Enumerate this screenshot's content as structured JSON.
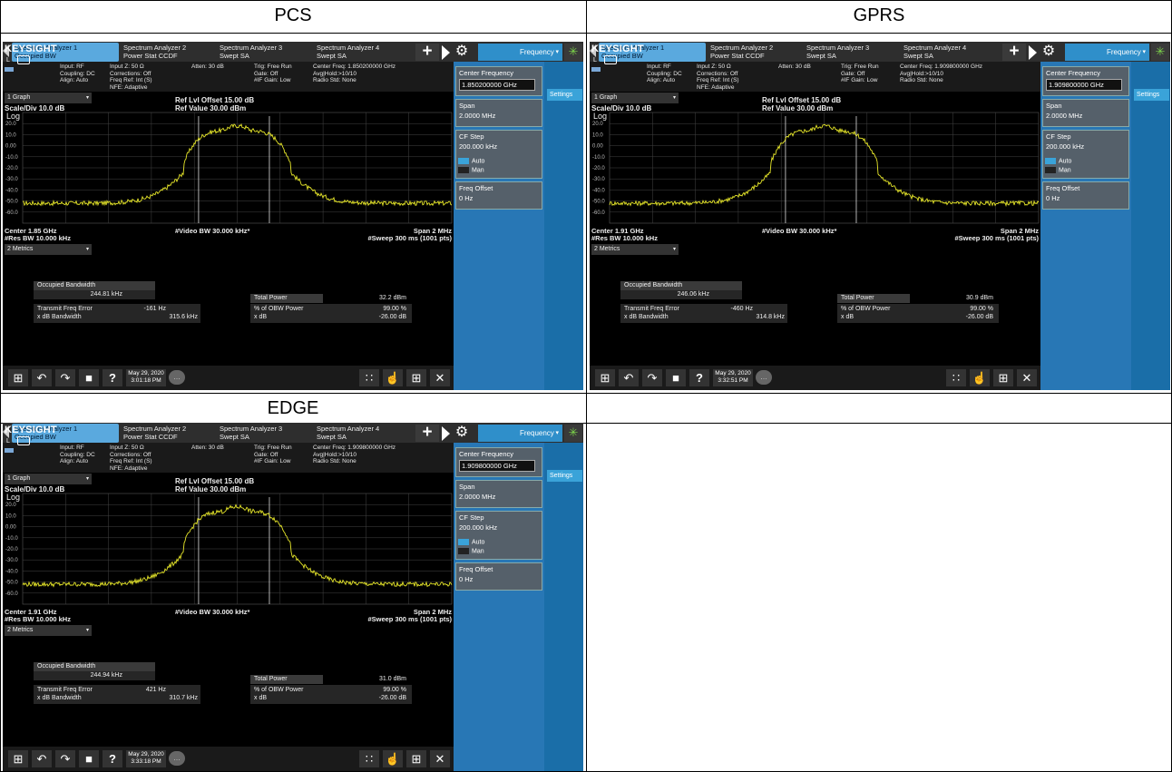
{
  "cells": [
    {
      "title": "PCS",
      "tabs": [
        {
          "line1": "Spectrum Analyzer 1",
          "line2": "Occupied BW",
          "active": true
        },
        {
          "line1": "Spectrum Analyzer 2",
          "line2": "Power Stat CCDF"
        },
        {
          "line1": "Spectrum Analyzer 3",
          "line2": "Swept SA"
        },
        {
          "line1": "Spectrum Analyzer 4",
          "line2": "Swept SA"
        }
      ],
      "menu_button": "Frequency",
      "brand": "KEYSIGHT",
      "info": {
        "c1": "Input: RF\nCoupling: DC\nAlign: Auto",
        "c2": "Input Z: 50 Ω\nCorrections: Off\nFreq Ref: Int (S)\nNFE: Adaptive",
        "c3": "Atten: 30 dB",
        "c4": "Trig: Free Run\nGate: Off\n#IF Gain: Low",
        "c5": "Center Freq: 1.850200000 GHz\nAvg|Hold:>10/10\nRadio Std: None"
      },
      "graph_select": "1 Graph",
      "ref_offset": "Ref Lvl Offset 15.00 dB",
      "ref_value": "Ref Value 30.00 dBm",
      "scale": "Scale/Div 10.0 dB",
      "log": "Log",
      "center": "Center 1.85 GHz",
      "res_bw": "#Res BW 10.000 kHz",
      "video_bw": "#Video BW 30.000 kHz*",
      "span": "Span 2 MHz",
      "sweep": "#Sweep 300 ms (1001 pts)",
      "metrics_select": "2 Metrics",
      "metrics": {
        "obw_label": "Occupied Bandwidth",
        "obw_value": "244.81 kHz",
        "tfe_label": "Transmit Freq Error",
        "tfe_value": "-161 Hz",
        "xdb_label": "x dB Bandwidth",
        "xdb_value": "315.6 kHz",
        "tp_label": "Total Power",
        "tp_value": "32.2 dBm",
        "pct_label": "% of OBW Power",
        "pct_value": "99.00 %",
        "xdb2_label": "x dB",
        "xdb2_value": "-26.00 dB"
      },
      "side": {
        "cf_label": "Center Frequency",
        "cf_value": "1.850200000 GHz",
        "settings": "Settings",
        "span_label": "Span",
        "span_value": "2.0000 MHz",
        "step_label": "CF Step",
        "step_value": "200.000 kHz",
        "auto": "Auto",
        "man": "Man",
        "offset_label": "Freq Offset",
        "offset_value": "0 Hz"
      },
      "date": "May 29, 2020",
      "time": "3:01:18 PM"
    },
    {
      "title": "GPRS",
      "tabs": [
        {
          "line1": "Spectrum Analyzer 1",
          "line2": "Occupied BW",
          "active": true
        },
        {
          "line1": "Spectrum Analyzer 2",
          "line2": "Power Stat CCDF"
        },
        {
          "line1": "Spectrum Analyzer 3",
          "line2": "Swept SA"
        },
        {
          "line1": "Spectrum Analyzer 4",
          "line2": "Swept SA"
        }
      ],
      "menu_button": "Frequency",
      "brand": "KEYSIGHT",
      "info": {
        "c1": "Input: RF\nCoupling: DC\nAlign: Auto",
        "c2": "Input Z: 50 Ω\nCorrections: Off\nFreq Ref: Int (S)\nNFE: Adaptive",
        "c3": "Atten: 30 dB",
        "c4": "Trig: Free Run\nGate: Off\n#IF Gain: Low",
        "c5": "Center Freq: 1.909800000 GHz\nAvg|Hold:>10/10\nRadio Std: None"
      },
      "graph_select": "1 Graph",
      "ref_offset": "Ref Lvl Offset 15.00 dB",
      "ref_value": "Ref Value 30.00 dBm",
      "scale": "Scale/Div 10.0 dB",
      "log": "Log",
      "center": "Center 1.91 GHz",
      "res_bw": "#Res BW 10.000 kHz",
      "video_bw": "#Video BW 30.000 kHz*",
      "span": "Span 2 MHz",
      "sweep": "#Sweep 300 ms (1001 pts)",
      "metrics_select": "2 Metrics",
      "metrics": {
        "obw_label": "Occupied Bandwidth",
        "obw_value": "246.06 kHz",
        "tfe_label": "Transmit Freq Error",
        "tfe_value": "-460 Hz",
        "xdb_label": "x dB Bandwidth",
        "xdb_value": "314.8 kHz",
        "tp_label": "Total Power",
        "tp_value": "30.9 dBm",
        "pct_label": "% of OBW Power",
        "pct_value": "99.00 %",
        "xdb2_label": "x dB",
        "xdb2_value": "-26.00 dB"
      },
      "side": {
        "cf_label": "Center Frequency",
        "cf_value": "1.909800000 GHz",
        "settings": "Settings",
        "span_label": "Span",
        "span_value": "2.0000 MHz",
        "step_label": "CF Step",
        "step_value": "200.000 kHz",
        "auto": "Auto",
        "man": "Man",
        "offset_label": "Freq Offset",
        "offset_value": "0 Hz"
      },
      "date": "May 29, 2020",
      "time": "3:32:51 PM"
    },
    {
      "title": "EDGE",
      "tabs": [
        {
          "line1": "Spectrum Analyzer 1",
          "line2": "Occupied BW",
          "active": true
        },
        {
          "line1": "Spectrum Analyzer 2",
          "line2": "Power Stat CCDF"
        },
        {
          "line1": "Spectrum Analyzer 3",
          "line2": "Swept SA"
        },
        {
          "line1": "Spectrum Analyzer 4",
          "line2": "Swept SA"
        }
      ],
      "menu_button": "Frequency",
      "brand": "KEYSIGHT",
      "info": {
        "c1": "Input: RF\nCoupling: DC\nAlign: Auto",
        "c2": "Input Z: 50 Ω\nCorrections: Off\nFreq Ref: Int (S)\nNFE: Adaptive",
        "c3": "Atten: 30 dB",
        "c4": "Trig: Free Run\nGate: Off\n#IF Gain: Low",
        "c5": "Center Freq: 1.909800000 GHz\nAvg|Hold:>10/10\nRadio Std: None"
      },
      "graph_select": "1 Graph",
      "ref_offset": "Ref Lvl Offset 15.00 dB",
      "ref_value": "Ref Value 30.00 dBm",
      "scale": "Scale/Div 10.0 dB",
      "log": "Log",
      "center": "Center 1.91 GHz",
      "res_bw": "#Res BW 10.000 kHz",
      "video_bw": "#Video BW 30.000 kHz*",
      "span": "Span 2 MHz",
      "sweep": "#Sweep 300 ms (1001 pts)",
      "metrics_select": "2 Metrics",
      "metrics": {
        "obw_label": "Occupied Bandwidth",
        "obw_value": "244.94 kHz",
        "tfe_label": "Transmit Freq Error",
        "tfe_value": "421 Hz",
        "xdb_label": "x dB Bandwidth",
        "xdb_value": "310.7 kHz",
        "tp_label": "Total Power",
        "tp_value": "31.0 dBm",
        "pct_label": "% of OBW Power",
        "pct_value": "99.00 %",
        "xdb2_label": "x dB",
        "xdb2_value": "-26.00 dB"
      },
      "side": {
        "cf_label": "Center Frequency",
        "cf_value": "1.909800000 GHz",
        "settings": "Settings",
        "span_label": "Span",
        "span_value": "2.0000 MHz",
        "step_label": "CF Step",
        "step_value": "200.000 kHz",
        "auto": "Auto",
        "man": "Man",
        "offset_label": "Freq Offset",
        "offset_value": "0 Hz"
      },
      "date": "May 29, 2020",
      "time": "3:33:18 PM"
    }
  ],
  "y_ticks": [
    "20.0",
    "10.0",
    "0.00",
    "-10.0",
    "-20.0",
    "-30.0",
    "-40.0",
    "-50.0",
    "-60.0"
  ],
  "colors": {
    "trace": "#e6e62a",
    "tab_active": "#5aa9de",
    "side_panel": "#2877b5",
    "accent": "#e0a92e"
  }
}
